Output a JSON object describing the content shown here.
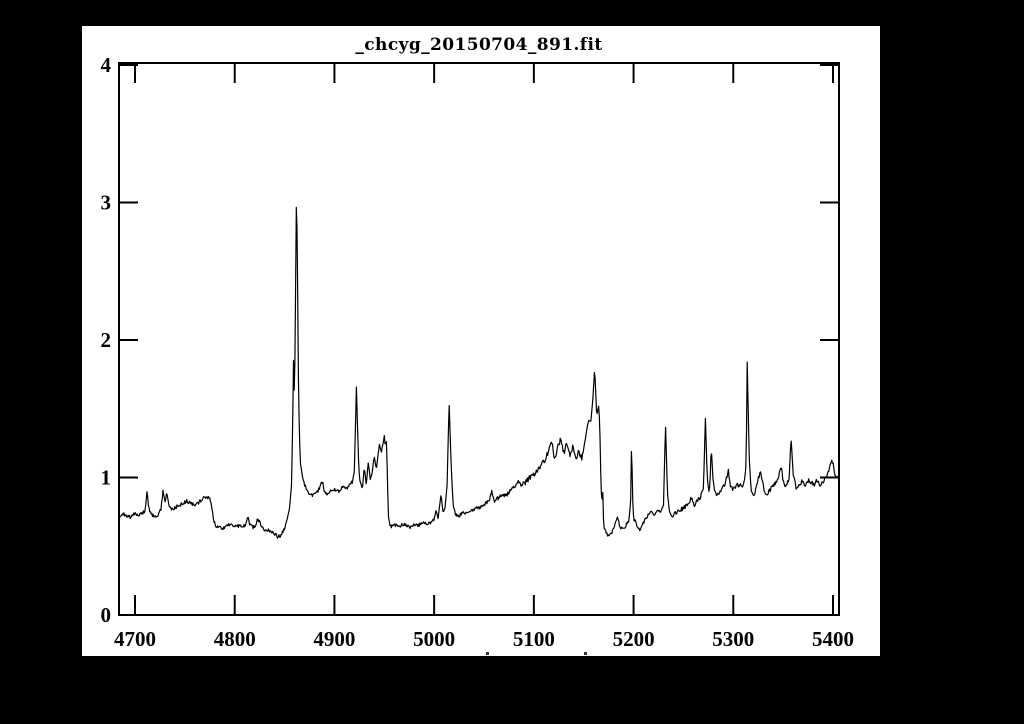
{
  "colors": {
    "outer_background": "#000000",
    "plot_background": "#ffffff",
    "axis_color": "#000000",
    "line_color": "#000000"
  },
  "chart_data": {
    "type": "line",
    "title": "_chcyg_20150704_891.fit",
    "xlabel": "",
    "ylabel": "",
    "xlim": [
      4684,
      5406
    ],
    "ylim": [
      0,
      4
    ],
    "x_ticks": [
      4700,
      4800,
      4900,
      5000,
      5100,
      5200,
      5300,
      5400
    ],
    "y_ticks": [
      0,
      1,
      2,
      3,
      4
    ],
    "grid": false,
    "legend": false,
    "tick_style": "inward-all-four-sides",
    "clipped_label_marks_x": [
      487,
      585
    ],
    "series": [
      {
        "name": "spectrum_flux",
        "anchor_points": [
          [
            4684,
            0.72
          ],
          [
            4688,
            0.74
          ],
          [
            4692,
            0.72
          ],
          [
            4696,
            0.71
          ],
          [
            4700,
            0.74
          ],
          [
            4704,
            0.73
          ],
          [
            4708,
            0.74
          ],
          [
            4710,
            0.76
          ],
          [
            4712,
            0.89
          ],
          [
            4714,
            0.77
          ],
          [
            4717,
            0.73
          ],
          [
            4720,
            0.71
          ],
          [
            4723,
            0.72
          ],
          [
            4726,
            0.77
          ],
          [
            4728,
            0.9
          ],
          [
            4730,
            0.82
          ],
          [
            4732,
            0.89
          ],
          [
            4734,
            0.8
          ],
          [
            4737,
            0.77
          ],
          [
            4740,
            0.78
          ],
          [
            4744,
            0.8
          ],
          [
            4748,
            0.81
          ],
          [
            4752,
            0.83
          ],
          [
            4756,
            0.81
          ],
          [
            4760,
            0.8
          ],
          [
            4764,
            0.82
          ],
          [
            4768,
            0.85
          ],
          [
            4772,
            0.86
          ],
          [
            4775,
            0.84
          ],
          [
            4777,
            0.78
          ],
          [
            4779,
            0.68
          ],
          [
            4781,
            0.65
          ],
          [
            4785,
            0.64
          ],
          [
            4789,
            0.63
          ],
          [
            4793,
            0.65
          ],
          [
            4797,
            0.67
          ],
          [
            4800,
            0.64
          ],
          [
            4804,
            0.65
          ],
          [
            4808,
            0.64
          ],
          [
            4811,
            0.66
          ],
          [
            4813,
            0.72
          ],
          [
            4815,
            0.66
          ],
          [
            4818,
            0.64
          ],
          [
            4821,
            0.65
          ],
          [
            4823,
            0.71
          ],
          [
            4825,
            0.67
          ],
          [
            4828,
            0.64
          ],
          [
            4831,
            0.61
          ],
          [
            4834,
            0.62
          ],
          [
            4837,
            0.6
          ],
          [
            4840,
            0.59
          ],
          [
            4843,
            0.57
          ],
          [
            4846,
            0.58
          ],
          [
            4849,
            0.61
          ],
          [
            4852,
            0.68
          ],
          [
            4855,
            0.78
          ],
          [
            4857,
            0.95
          ],
          [
            4858,
            1.3
          ],
          [
            4859,
            1.85
          ],
          [
            4860,
            1.55
          ],
          [
            4861,
            2.3
          ],
          [
            4862,
            3.13
          ],
          [
            4863,
            2.5
          ],
          [
            4864,
            1.65
          ],
          [
            4865,
            1.28
          ],
          [
            4866,
            1.1
          ],
          [
            4868,
            1.0
          ],
          [
            4871,
            0.93
          ],
          [
            4874,
            0.89
          ],
          [
            4878,
            0.87
          ],
          [
            4882,
            0.89
          ],
          [
            4885,
            0.92
          ],
          [
            4888,
            0.97
          ],
          [
            4890,
            0.9
          ],
          [
            4893,
            0.87
          ],
          [
            4896,
            0.9
          ],
          [
            4900,
            0.91
          ],
          [
            4904,
            0.9
          ],
          [
            4908,
            0.93
          ],
          [
            4912,
            0.92
          ],
          [
            4915,
            0.94
          ],
          [
            4918,
            0.97
          ],
          [
            4920,
            1.05
          ],
          [
            4922,
            1.66
          ],
          [
            4924,
            1.15
          ],
          [
            4925,
            1.0
          ],
          [
            4928,
            0.91
          ],
          [
            4930,
            1.08
          ],
          [
            4932,
            0.94
          ],
          [
            4934,
            1.12
          ],
          [
            4936,
            0.98
          ],
          [
            4938,
            1.04
          ],
          [
            4940,
            1.16
          ],
          [
            4942,
            1.06
          ],
          [
            4945,
            1.24
          ],
          [
            4947,
            1.18
          ],
          [
            4949,
            1.26
          ],
          [
            4950,
            1.3
          ],
          [
            4951,
            1.22
          ],
          [
            4952,
            1.28
          ],
          [
            4953,
            1.05
          ],
          [
            4954,
            0.72
          ],
          [
            4956,
            0.64
          ],
          [
            4960,
            0.66
          ],
          [
            4964,
            0.64
          ],
          [
            4968,
            0.66
          ],
          [
            4972,
            0.65
          ],
          [
            4976,
            0.64
          ],
          [
            4980,
            0.66
          ],
          [
            4984,
            0.65
          ],
          [
            4988,
            0.67
          ],
          [
            4992,
            0.66
          ],
          [
            4996,
            0.67
          ],
          [
            5000,
            0.7
          ],
          [
            5002,
            0.76
          ],
          [
            5004,
            0.7
          ],
          [
            5007,
            0.88
          ],
          [
            5009,
            0.74
          ],
          [
            5011,
            0.78
          ],
          [
            5013,
            0.95
          ],
          [
            5015,
            1.55
          ],
          [
            5017,
            1.1
          ],
          [
            5019,
            0.8
          ],
          [
            5021,
            0.74
          ],
          [
            5024,
            0.72
          ],
          [
            5028,
            0.74
          ],
          [
            5032,
            0.75
          ],
          [
            5036,
            0.76
          ],
          [
            5040,
            0.77
          ],
          [
            5044,
            0.78
          ],
          [
            5048,
            0.79
          ],
          [
            5052,
            0.81
          ],
          [
            5055,
            0.83
          ],
          [
            5058,
            0.9
          ],
          [
            5060,
            0.83
          ],
          [
            5064,
            0.85
          ],
          [
            5068,
            0.87
          ],
          [
            5072,
            0.87
          ],
          [
            5076,
            0.9
          ],
          [
            5080,
            0.93
          ],
          [
            5085,
            0.97
          ],
          [
            5088,
            0.94
          ],
          [
            5092,
            0.97
          ],
          [
            5096,
            1.0
          ],
          [
            5100,
            1.02
          ],
          [
            5104,
            1.06
          ],
          [
            5108,
            1.1
          ],
          [
            5112,
            1.14
          ],
          [
            5115,
            1.2
          ],
          [
            5118,
            1.26
          ],
          [
            5121,
            1.12
          ],
          [
            5124,
            1.22
          ],
          [
            5127,
            1.28
          ],
          [
            5130,
            1.18
          ],
          [
            5133,
            1.25
          ],
          [
            5136,
            1.15
          ],
          [
            5139,
            1.22
          ],
          [
            5142,
            1.13
          ],
          [
            5145,
            1.2
          ],
          [
            5148,
            1.14
          ],
          [
            5151,
            1.25
          ],
          [
            5153,
            1.35
          ],
          [
            5155,
            1.42
          ],
          [
            5157,
            1.4
          ],
          [
            5159,
            1.55
          ],
          [
            5161,
            1.8
          ],
          [
            5163,
            1.45
          ],
          [
            5165,
            1.52
          ],
          [
            5166,
            1.4
          ],
          [
            5167,
            1.05
          ],
          [
            5168,
            0.8
          ],
          [
            5169,
            0.92
          ],
          [
            5170,
            0.64
          ],
          [
            5172,
            0.61
          ],
          [
            5175,
            0.57
          ],
          [
            5178,
            0.6
          ],
          [
            5181,
            0.65
          ],
          [
            5184,
            0.72
          ],
          [
            5186,
            0.65
          ],
          [
            5189,
            0.62
          ],
          [
            5192,
            0.65
          ],
          [
            5195,
            0.68
          ],
          [
            5197,
            0.8
          ],
          [
            5198,
            1.29
          ],
          [
            5199,
            0.85
          ],
          [
            5200,
            0.7
          ],
          [
            5203,
            0.66
          ],
          [
            5206,
            0.62
          ],
          [
            5209,
            0.66
          ],
          [
            5212,
            0.7
          ],
          [
            5215,
            0.73
          ],
          [
            5218,
            0.75
          ],
          [
            5221,
            0.73
          ],
          [
            5224,
            0.76
          ],
          [
            5227,
            0.75
          ],
          [
            5230,
            0.8
          ],
          [
            5232,
            1.39
          ],
          [
            5234,
            0.88
          ],
          [
            5236,
            0.75
          ],
          [
            5239,
            0.71
          ],
          [
            5242,
            0.74
          ],
          [
            5246,
            0.76
          ],
          [
            5250,
            0.78
          ],
          [
            5254,
            0.8
          ],
          [
            5258,
            0.85
          ],
          [
            5261,
            0.8
          ],
          [
            5264,
            0.83
          ],
          [
            5267,
            0.86
          ],
          [
            5270,
            0.92
          ],
          [
            5272,
            1.42
          ],
          [
            5274,
            0.98
          ],
          [
            5276,
            0.88
          ],
          [
            5278,
            1.21
          ],
          [
            5280,
            0.96
          ],
          [
            5283,
            0.86
          ],
          [
            5286,
            0.88
          ],
          [
            5289,
            0.92
          ],
          [
            5292,
            0.96
          ],
          [
            5295,
            1.05
          ],
          [
            5297,
            0.94
          ],
          [
            5300,
            0.91
          ],
          [
            5303,
            0.94
          ],
          [
            5306,
            0.95
          ],
          [
            5309,
            0.93
          ],
          [
            5311,
            0.97
          ],
          [
            5313,
            1.1
          ],
          [
            5314,
            1.84
          ],
          [
            5316,
            1.15
          ],
          [
            5318,
            0.9
          ],
          [
            5321,
            0.86
          ],
          [
            5324,
            0.96
          ],
          [
            5327,
            1.04
          ],
          [
            5330,
            0.94
          ],
          [
            5333,
            0.86
          ],
          [
            5336,
            0.9
          ],
          [
            5339,
            0.93
          ],
          [
            5342,
            0.96
          ],
          [
            5345,
            1.0
          ],
          [
            5348,
            1.08
          ],
          [
            5350,
            0.98
          ],
          [
            5353,
            0.93
          ],
          [
            5356,
            1.0
          ],
          [
            5358,
            1.29
          ],
          [
            5360,
            1.02
          ],
          [
            5363,
            0.93
          ],
          [
            5366,
            0.95
          ],
          [
            5369,
            0.97
          ],
          [
            5372,
            0.95
          ],
          [
            5375,
            0.98
          ],
          [
            5378,
            0.96
          ],
          [
            5381,
            0.95
          ],
          [
            5384,
            0.98
          ],
          [
            5387,
            0.95
          ],
          [
            5390,
            0.97
          ],
          [
            5393,
            1.0
          ],
          [
            5396,
            1.06
          ],
          [
            5398,
            1.12
          ],
          [
            5400,
            1.1
          ],
          [
            5402,
            1.02
          ],
          [
            5404,
            1.0
          ],
          [
            5406,
            1.01
          ]
        ],
        "noise_regions": [
          [
            4684,
            4850,
            0.013
          ],
          [
            4850,
            4870,
            0.004
          ],
          [
            4870,
            4918,
            0.013
          ],
          [
            4918,
            4956,
            0.006
          ],
          [
            4956,
            5000,
            0.012
          ],
          [
            5000,
            5020,
            0.005
          ],
          [
            5020,
            5088,
            0.014
          ],
          [
            5088,
            5150,
            0.02
          ],
          [
            5150,
            5172,
            0.005
          ],
          [
            5172,
            5228,
            0.012
          ],
          [
            5228,
            5240,
            0.004
          ],
          [
            5240,
            5308,
            0.016
          ],
          [
            5308,
            5320,
            0.004
          ],
          [
            5320,
            5406,
            0.016
          ]
        ]
      }
    ]
  }
}
